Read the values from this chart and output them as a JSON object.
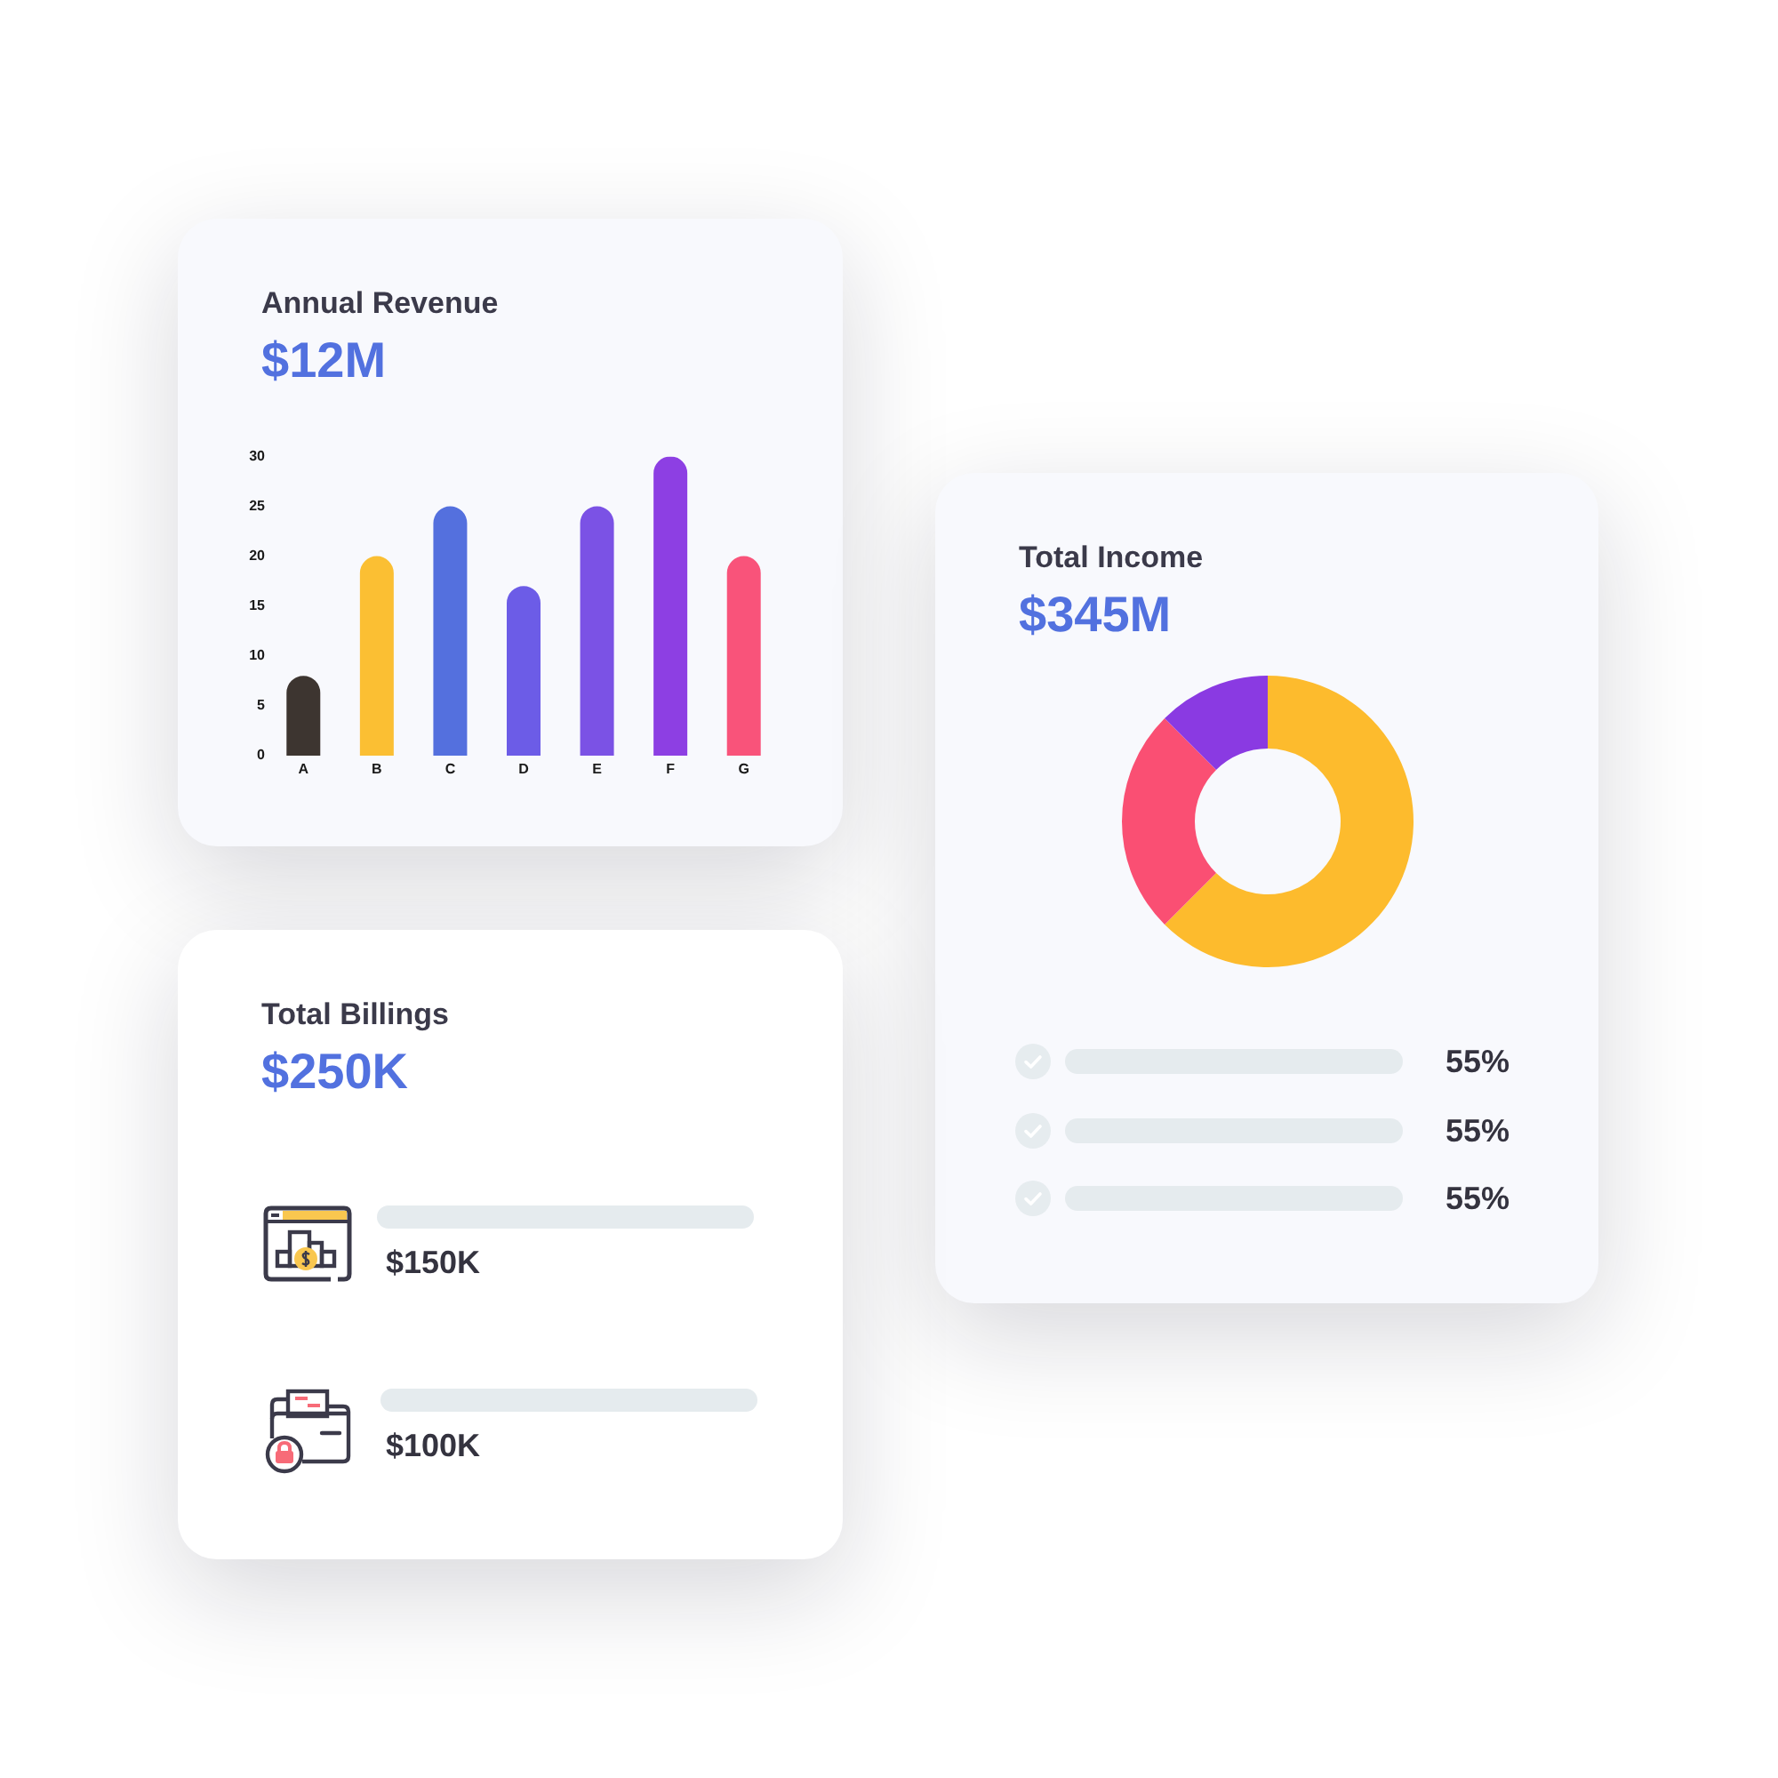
{
  "chart_data": [
    {
      "type": "bar",
      "title": "Annual Revenue",
      "subtitle": "$12M",
      "categories": [
        "A",
        "B",
        "C",
        "D",
        "E",
        "F",
        "G"
      ],
      "values": [
        8,
        20,
        25,
        17,
        25,
        30,
        20
      ],
      "colors": [
        "#3d3530",
        "#fbbf33",
        "#5470de",
        "#6c5ce7",
        "#7b52e5",
        "#8d3fe3",
        "#f9537a"
      ],
      "ylim": [
        0,
        30
      ],
      "yticks": [
        0,
        5,
        10,
        15,
        20,
        25,
        30
      ]
    },
    {
      "type": "donut",
      "title": "Total Income",
      "subtitle": "$345M",
      "categories": [
        null,
        null,
        null
      ],
      "values": [
        62.5,
        25,
        12.5
      ],
      "colors": [
        "#fdbb2d",
        "#fa4f73",
        "#8a3ae2"
      ],
      "annotations": [
        "55%",
        "55%",
        "55%"
      ]
    },
    {
      "type": "other",
      "title": "Total Billings",
      "subtitle": "$250K",
      "annotations": [
        "$150K",
        "$100K"
      ]
    }
  ]
}
